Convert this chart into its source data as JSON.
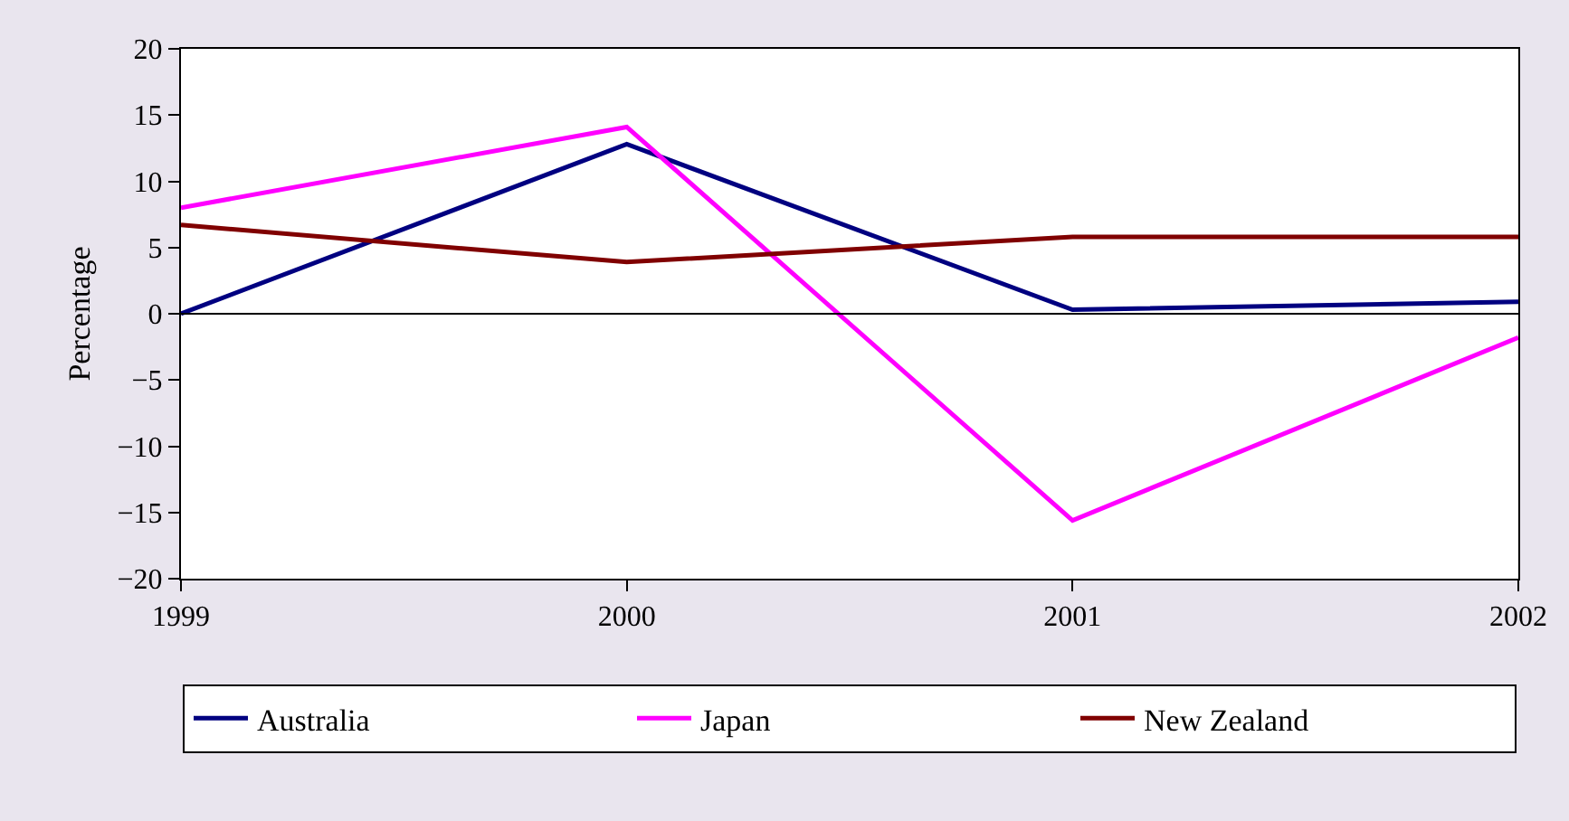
{
  "chart_data": {
    "type": "line",
    "ylabel": "Percentage",
    "x": [
      1999,
      2000,
      2001,
      2002
    ],
    "xlim": [
      1999,
      2002
    ],
    "xticks": [
      1999,
      2000,
      2001,
      2002
    ],
    "ylim": [
      -20,
      20
    ],
    "yticks": [
      {
        "value": -20,
        "label": "−20"
      },
      {
        "value": -15,
        "label": "−15"
      },
      {
        "value": -10,
        "label": "−10"
      },
      {
        "value": -5,
        "label": "−5"
      },
      0,
      5,
      10,
      15,
      20
    ],
    "series": [
      {
        "name": "Australia",
        "color": "#000080",
        "values": [
          0.0,
          12.8,
          0.3,
          0.9
        ]
      },
      {
        "name": "Japan",
        "color": "#ff00ff",
        "values": [
          8.0,
          14.1,
          -15.6,
          -1.8
        ]
      },
      {
        "name": "New Zealand",
        "color": "#800000",
        "values": [
          6.7,
          3.9,
          5.8,
          5.8
        ]
      }
    ],
    "ref_lines": [
      {
        "axis": "y",
        "value": 0,
        "color": "#000000"
      }
    ],
    "legend": "bottom",
    "marker": "none",
    "line_style": "solid"
  }
}
